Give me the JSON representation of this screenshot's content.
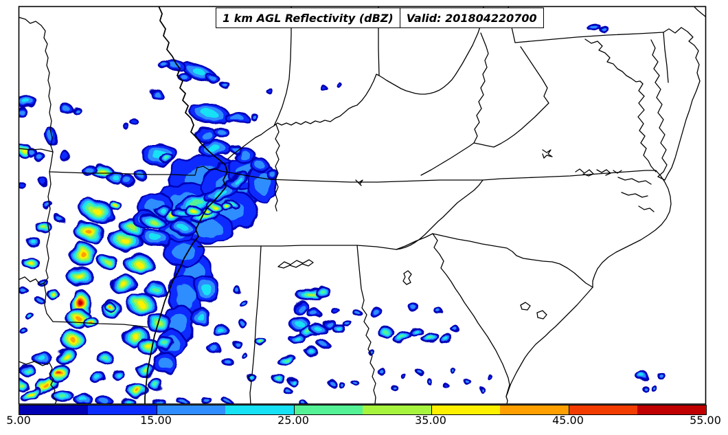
{
  "figure": {
    "title_left": "1 km AGL Reflectivity (dBZ)",
    "title_right": "Valid: 201804220700"
  },
  "chart_data": {
    "type": "heatmap",
    "title": "1 km AGL Reflectivity (dBZ)",
    "valid_time": "201804220700",
    "units": "dBZ",
    "region": "Southeastern United States",
    "legend_position": "bottom",
    "colorbar": {
      "levels": [
        5,
        10,
        15,
        20,
        25,
        30,
        35,
        40,
        45,
        50,
        55
      ],
      "tick_values": [
        5,
        15,
        25,
        35,
        45,
        55
      ],
      "tick_labels": [
        "5.00",
        "15.00",
        "25.00",
        "35.00",
        "45.00",
        "55.00"
      ],
      "colors": [
        "#0000b4",
        "#0a2cff",
        "#2f8dff",
        "#16e1f5",
        "#55f195",
        "#a7f43f",
        "#fdf100",
        "#ffa000",
        "#f23c00",
        "#c00000"
      ]
    },
    "radar_cells_format": [
      "x_px",
      "y_px",
      "rx_px",
      "ry_px",
      "rotation_deg",
      "peak_dbz"
    ],
    "radar_cells": [
      [
        255,
        95,
        15,
        7,
        12,
        18
      ],
      [
        240,
        95,
        8,
        5,
        0,
        18
      ],
      [
        290,
        105,
        27,
        10,
        22,
        23
      ],
      [
        312,
        116,
        11,
        6,
        28,
        18
      ],
      [
        268,
        112,
        8,
        5,
        0,
        18
      ],
      [
        330,
        126,
        6,
        4,
        0,
        18
      ],
      [
        305,
        165,
        28,
        14,
        8,
        23
      ],
      [
        345,
        172,
        17,
        7,
        0,
        18
      ],
      [
        370,
        170,
        5,
        4,
        0,
        18
      ],
      [
        300,
        196,
        15,
        10,
        0,
        18
      ],
      [
        322,
        192,
        10,
        6,
        0,
        18
      ],
      [
        312,
        216,
        23,
        12,
        0,
        23
      ],
      [
        342,
        216,
        8,
        5,
        0,
        18
      ],
      [
        228,
        137,
        8,
        6,
        0,
        18
      ],
      [
        196,
        178,
        5,
        4,
        0,
        13
      ],
      [
        184,
        184,
        4,
        3,
        0,
        13
      ],
      [
        390,
        130,
        4,
        3,
        0,
        13
      ],
      [
        472,
        129,
        4,
        3,
        0,
        13
      ],
      [
        497,
        127,
        3,
        3,
        0,
        13
      ],
      [
        38,
        147,
        14,
        8,
        0,
        23
      ],
      [
        29,
        161,
        8,
        6,
        0,
        18
      ],
      [
        96,
        158,
        9,
        6,
        0,
        18
      ],
      [
        112,
        161,
        6,
        4,
        0,
        18
      ],
      [
        74,
        198,
        8,
        11,
        0,
        18
      ],
      [
        95,
        228,
        7,
        6,
        0,
        13
      ],
      [
        58,
        229,
        7,
        6,
        0,
        18
      ],
      [
        62,
        263,
        6,
        5,
        0,
        13
      ],
      [
        33,
        271,
        5,
        4,
        0,
        13
      ],
      [
        34,
        218,
        11,
        8,
        0,
        38
      ],
      [
        46,
        222,
        7,
        5,
        0,
        18
      ],
      [
        150,
        251,
        15,
        9,
        0,
        38
      ],
      [
        168,
        258,
        12,
        8,
        0,
        23
      ],
      [
        186,
        263,
        10,
        7,
        0,
        18
      ],
      [
        131,
        249,
        10,
        7,
        0,
        18
      ],
      [
        206,
        256,
        8,
        6,
        0,
        18
      ],
      [
        233,
        226,
        26,
        15,
        0,
        23
      ],
      [
        244,
        231,
        10,
        6,
        0,
        28
      ],
      [
        300,
        262,
        54,
        36,
        0,
        18
      ],
      [
        340,
        272,
        46,
        34,
        0,
        18
      ],
      [
        272,
        300,
        50,
        33,
        0,
        18
      ],
      [
        330,
        306,
        44,
        30,
        0,
        18
      ],
      [
        362,
        252,
        30,
        24,
        0,
        18
      ],
      [
        382,
        266,
        20,
        28,
        0,
        18
      ],
      [
        300,
        332,
        40,
        22,
        0,
        18
      ],
      [
        256,
        336,
        25,
        15,
        0,
        18
      ],
      [
        226,
        300,
        25,
        20,
        0,
        18
      ],
      [
        212,
        320,
        18,
        12,
        0,
        18
      ],
      [
        356,
        226,
        15,
        10,
        0,
        18
      ],
      [
        378,
        240,
        12,
        9,
        0,
        18
      ],
      [
        396,
        253,
        8,
        6,
        0,
        18
      ],
      [
        286,
        296,
        30,
        11,
        -18,
        28
      ],
      [
        320,
        281,
        24,
        9,
        -22,
        23
      ],
      [
        346,
        262,
        17,
        8,
        -28,
        23
      ],
      [
        300,
        316,
        20,
        8,
        -14,
        33
      ],
      [
        266,
        311,
        14,
        7,
        0,
        23
      ],
      [
        237,
        306,
        12,
        6,
        0,
        23
      ],
      [
        330,
        300,
        7,
        5,
        0,
        38
      ],
      [
        302,
        308,
        6,
        4,
        0,
        38
      ],
      [
        170,
        301,
        8,
        5,
        0,
        38
      ],
      [
        192,
        330,
        20,
        11,
        14,
        33
      ],
      [
        222,
        322,
        17,
        9,
        10,
        33
      ],
      [
        252,
        315,
        15,
        8,
        10,
        38
      ],
      [
        282,
        308,
        13,
        7,
        8,
        38
      ],
      [
        312,
        301,
        11,
        6,
        8,
        38
      ],
      [
        336,
        296,
        9,
        5,
        5,
        28
      ],
      [
        227,
        346,
        24,
        11,
        10,
        23
      ],
      [
        266,
        331,
        19,
        9,
        10,
        23
      ],
      [
        140,
        306,
        26,
        16,
        18,
        38
      ],
      [
        130,
        338,
        22,
        14,
        8,
        43
      ],
      [
        121,
        370,
        20,
        16,
        4,
        43
      ],
      [
        117,
        403,
        18,
        14,
        0,
        38
      ],
      [
        117,
        441,
        15,
        18,
        0,
        53
      ],
      [
        115,
        464,
        17,
        13,
        0,
        43
      ],
      [
        106,
        494,
        17,
        13,
        -8,
        43
      ],
      [
        97,
        519,
        15,
        11,
        -14,
        38
      ],
      [
        87,
        544,
        15,
        11,
        -22,
        48
      ],
      [
        67,
        561,
        21,
        9,
        -32,
        43
      ],
      [
        45,
        574,
        15,
        7,
        -28,
        38
      ],
      [
        133,
        470,
        10,
        8,
        0,
        43
      ],
      [
        160,
        447,
        7,
        5,
        0,
        43
      ],
      [
        182,
        350,
        23,
        15,
        8,
        38
      ],
      [
        202,
        384,
        21,
        13,
        0,
        38
      ],
      [
        180,
        414,
        19,
        13,
        0,
        38
      ],
      [
        207,
        444,
        21,
        15,
        0,
        38
      ],
      [
        197,
        489,
        19,
        15,
        0,
        38
      ],
      [
        216,
        504,
        15,
        11,
        0,
        38
      ],
      [
        231,
        470,
        17,
        13,
        0,
        33
      ],
      [
        162,
        450,
        15,
        11,
        0,
        33
      ],
      [
        157,
        381,
        13,
        9,
        0,
        33
      ],
      [
        226,
        421,
        15,
        11,
        0,
        28
      ],
      [
        241,
        500,
        13,
        9,
        0,
        28
      ],
      [
        212,
        539,
        13,
        9,
        0,
        33
      ],
      [
        201,
        569,
        15,
        9,
        0,
        43
      ],
      [
        226,
        559,
        11,
        7,
        0,
        28
      ],
      [
        152,
        520,
        11,
        8,
        0,
        28
      ],
      [
        142,
        549,
        11,
        8,
        0,
        23
      ],
      [
        171,
        544,
        9,
        6,
        0,
        23
      ],
      [
        63,
        330,
        11,
        8,
        0,
        33
      ],
      [
        49,
        352,
        9,
        6,
        0,
        23
      ],
      [
        46,
        384,
        11,
        8,
        0,
        38
      ],
      [
        77,
        428,
        8,
        6,
        0,
        38
      ],
      [
        61,
        410,
        7,
        5,
        0,
        18
      ],
      [
        36,
        425,
        6,
        4,
        0,
        18
      ],
      [
        59,
        438,
        5,
        4,
        0,
        18
      ],
      [
        41,
        458,
        6,
        4,
        0,
        23
      ],
      [
        33,
        480,
        5,
        4,
        0,
        18
      ],
      [
        71,
        300,
        7,
        5,
        0,
        18
      ],
      [
        86,
        318,
        6,
        4,
        0,
        18
      ],
      [
        267,
        366,
        29,
        21,
        0,
        18
      ],
      [
        282,
        396,
        27,
        28,
        0,
        18
      ],
      [
        270,
        432,
        25,
        30,
        0,
        18
      ],
      [
        260,
        470,
        23,
        26,
        0,
        18
      ],
      [
        250,
        500,
        19,
        20,
        0,
        18
      ],
      [
        240,
        528,
        17,
        15,
        0,
        18
      ],
      [
        301,
        421,
        17,
        20,
        0,
        23
      ],
      [
        292,
        461,
        13,
        13,
        0,
        23
      ],
      [
        321,
        481,
        11,
        8,
        0,
        23
      ],
      [
        311,
        506,
        9,
        7,
        0,
        18
      ],
      [
        331,
        526,
        7,
        5,
        0,
        18
      ],
      [
        346,
        501,
        6,
        4,
        0,
        18
      ],
      [
        352,
        470,
        5,
        4,
        0,
        18
      ],
      [
        354,
        441,
        6,
        4,
        0,
        18
      ],
      [
        344,
        421,
        5,
        4,
        0,
        18
      ],
      [
        61,
        521,
        13,
        9,
        0,
        23
      ],
      [
        41,
        540,
        11,
        8,
        0,
        28
      ],
      [
        31,
        561,
        9,
        7,
        0,
        33
      ],
      [
        91,
        576,
        15,
        8,
        0,
        28
      ],
      [
        121,
        581,
        13,
        7,
        0,
        23
      ],
      [
        151,
        583,
        11,
        6,
        0,
        18
      ],
      [
        186,
        584,
        9,
        5,
        0,
        23
      ],
      [
        231,
        585,
        9,
        5,
        0,
        18
      ],
      [
        266,
        584,
        7,
        4,
        0,
        18
      ],
      [
        301,
        583,
        7,
        4,
        0,
        18
      ],
      [
        331,
        584,
        5,
        3,
        0,
        18
      ],
      [
        366,
        549,
        6,
        4,
        0,
        23
      ],
      [
        381,
        498,
        7,
        5,
        0,
        33
      ],
      [
        356,
        518,
        4,
        3,
        0,
        18
      ],
      [
        406,
        551,
        9,
        5,
        0,
        28
      ],
      [
        419,
        569,
        5,
        4,
        0,
        18
      ],
      [
        441,
        586,
        4,
        3,
        0,
        18
      ],
      [
        416,
        523,
        13,
        6,
        -12,
        28
      ],
      [
        427,
        556,
        7,
        4,
        0,
        23
      ],
      [
        453,
        429,
        19,
        9,
        -8,
        33
      ],
      [
        471,
        426,
        11,
        7,
        0,
        28
      ],
      [
        439,
        449,
        11,
        7,
        -25,
        18
      ],
      [
        457,
        456,
        9,
        6,
        0,
        18
      ],
      [
        436,
        471,
        15,
        9,
        0,
        23
      ],
      [
        449,
        483,
        13,
        8,
        0,
        28
      ],
      [
        433,
        493,
        11,
        7,
        0,
        23
      ],
      [
        463,
        479,
        11,
        7,
        0,
        23
      ],
      [
        479,
        471,
        9,
        6,
        0,
        18
      ],
      [
        493,
        478,
        9,
        5,
        0,
        23
      ],
      [
        506,
        471,
        6,
        4,
        0,
        18
      ],
      [
        521,
        456,
        5,
        4,
        0,
        18
      ],
      [
        489,
        453,
        5,
        4,
        0,
        13
      ],
      [
        471,
        501,
        7,
        5,
        0,
        18
      ],
      [
        453,
        511,
        9,
        5,
        0,
        23
      ],
      [
        484,
        558,
        5,
        4,
        0,
        18
      ],
      [
        498,
        561,
        4,
        3,
        0,
        18
      ],
      [
        516,
        556,
        4,
        3,
        0,
        18
      ],
      [
        546,
        453,
        9,
        6,
        0,
        18
      ],
      [
        561,
        483,
        11,
        7,
        0,
        28
      ],
      [
        586,
        491,
        13,
        7,
        -18,
        28
      ],
      [
        606,
        483,
        9,
        6,
        0,
        23
      ],
      [
        626,
        491,
        11,
        6,
        -22,
        28
      ],
      [
        649,
        493,
        9,
        5,
        -18,
        23
      ],
      [
        601,
        446,
        7,
        5,
        0,
        18
      ],
      [
        639,
        453,
        5,
        4,
        0,
        18
      ],
      [
        663,
        479,
        5,
        4,
        0,
        18
      ],
      [
        541,
        513,
        4,
        3,
        0,
        18
      ],
      [
        556,
        541,
        5,
        4,
        0,
        18
      ],
      [
        573,
        563,
        4,
        3,
        0,
        18
      ],
      [
        589,
        549,
        3,
        3,
        0,
        13
      ],
      [
        611,
        541,
        4,
        3,
        0,
        18
      ],
      [
        626,
        556,
        3,
        3,
        0,
        18
      ],
      [
        649,
        561,
        3,
        3,
        0,
        13
      ],
      [
        661,
        541,
        3,
        3,
        0,
        18
      ],
      [
        681,
        556,
        4,
        3,
        0,
        18
      ],
      [
        701,
        566,
        3,
        3,
        0,
        18
      ],
      [
        713,
        549,
        3,
        3,
        0,
        13
      ],
      [
        864,
        39,
        9,
        4,
        -8,
        18
      ],
      [
        879,
        42,
        6,
        3,
        -8,
        18
      ],
      [
        934,
        546,
        8,
        6,
        0,
        23
      ],
      [
        963,
        547,
        5,
        4,
        0,
        18
      ],
      [
        939,
        565,
        4,
        3,
        0,
        18
      ],
      [
        953,
        566,
        4,
        3,
        0,
        18
      ]
    ]
  }
}
